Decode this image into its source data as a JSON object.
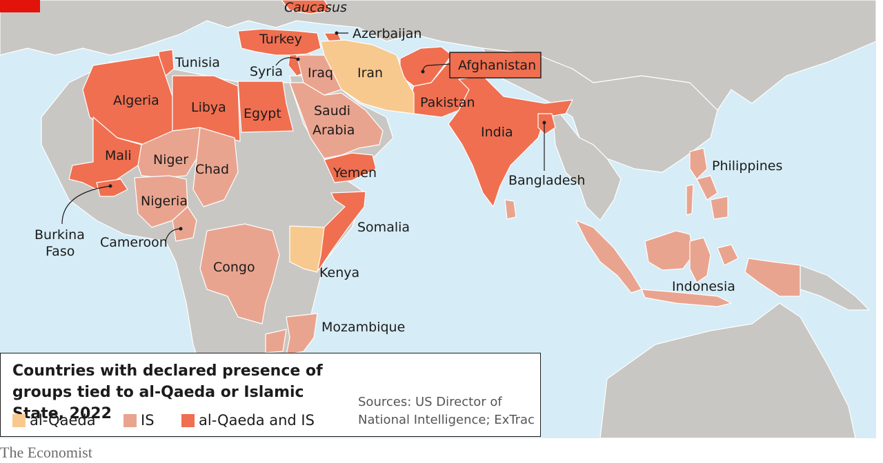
{
  "legend": {
    "title": "Countries with declared presence of groups tied to al-Qaeda or Islamic State, 2022",
    "items": [
      {
        "label": "al-Qaeda",
        "color": "#f7c98e"
      },
      {
        "label": "IS",
        "color": "#e9a48f"
      },
      {
        "label": "al-Qaeda and IS",
        "color": "#ef6f50"
      }
    ]
  },
  "source": "Sources: US Director of National Intelligence; ExTrac",
  "brand": "The Economist",
  "colors": {
    "sea": "#d6ecf6",
    "land": "#c9c7c3",
    "al_qaeda": "#f7c98e",
    "is": "#e9a48f",
    "both": "#ef6f50",
    "accent": "#e3120b"
  },
  "region_label": "Caucasus",
  "countries": {
    "al_qaeda": [
      "Iran",
      "Kenya"
    ],
    "is": [
      "Iraq",
      "Saudi Arabia",
      "Niger",
      "Chad",
      "Nigeria",
      "Cameroon",
      "Congo",
      "Mozambique",
      "Philippines",
      "Indonesia"
    ],
    "al_qaeda_and_is": [
      "Turkey",
      "Syria",
      "Azerbaijan",
      "Tunisia",
      "Algeria",
      "Libya",
      "Egypt",
      "Mali",
      "Burkina Faso",
      "Yemen",
      "Somalia",
      "Afghanistan",
      "Pakistan",
      "India",
      "Bangladesh"
    ]
  },
  "labels": {
    "caucasus": "Caucasus",
    "turkey": "Turkey",
    "azerbaijan": "Azerbaijan",
    "tunisia": "Tunisia",
    "syria": "Syria",
    "iraq": "Iraq",
    "iran": "Iran",
    "afghanistan": "Afghanistan",
    "algeria": "Algeria",
    "libya": "Libya",
    "egypt": "Egypt",
    "saudi_1": "Saudi",
    "saudi_2": "Arabia",
    "pakistan": "Pakistan",
    "india": "India",
    "mali": "Mali",
    "niger": "Niger",
    "chad": "Chad",
    "yemen": "Yemen",
    "bangladesh": "Bangladesh",
    "philippines": "Philippines",
    "nigeria": "Nigeria",
    "somalia": "Somalia",
    "burkina_1": "Burkina",
    "burkina_2": "Faso",
    "cameroon": "Cameroon",
    "congo": "Congo",
    "kenya": "Kenya",
    "indonesia": "Indonesia",
    "mozambique": "Mozambique"
  }
}
